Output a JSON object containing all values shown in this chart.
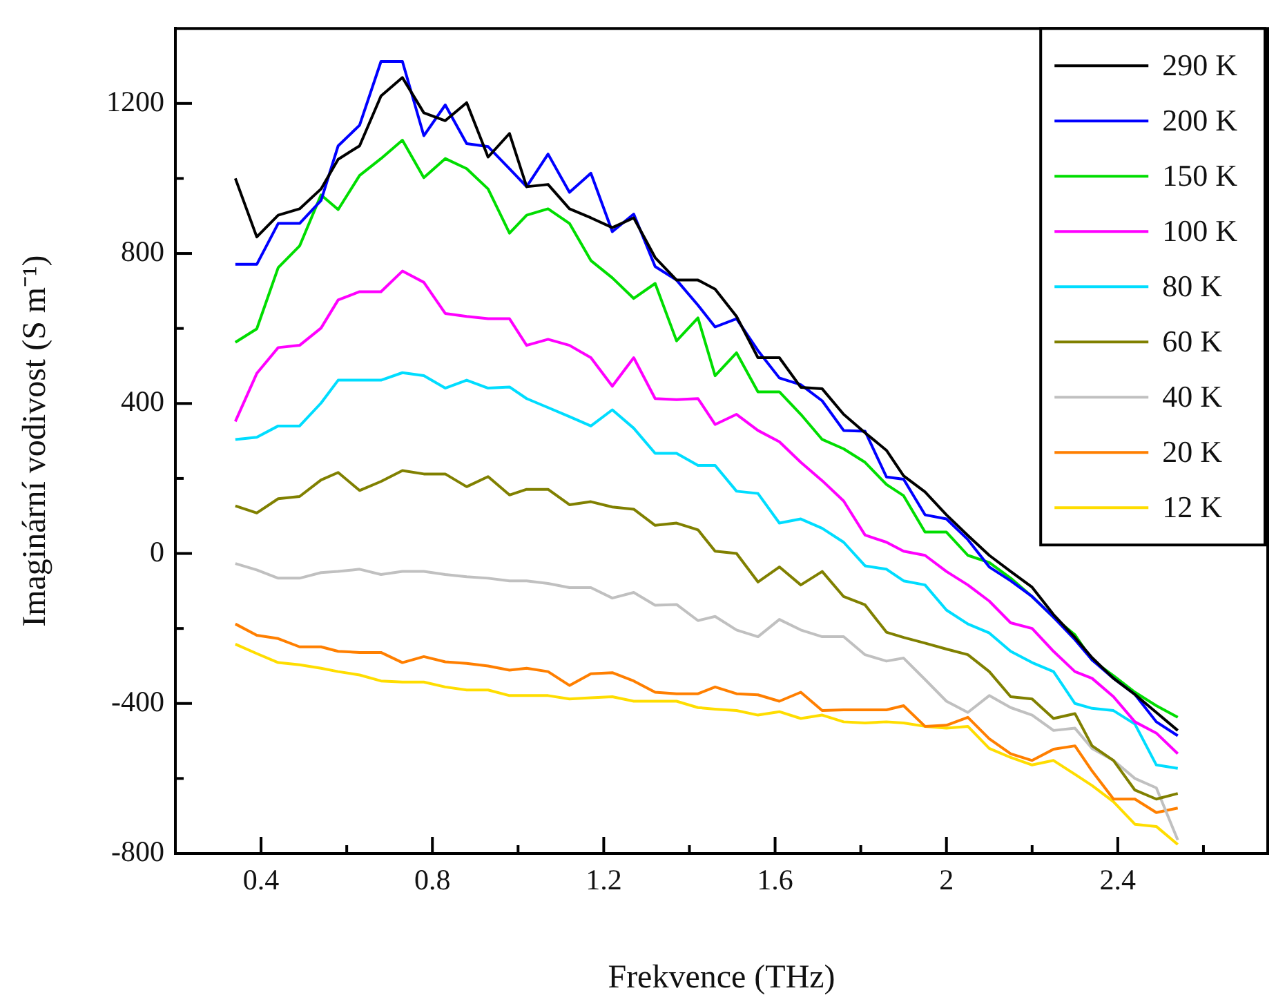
{
  "chart_data": {
    "type": "line",
    "xlabel": "Frekvence (THz)",
    "ylabel": "Imaginární vodivost (S m⁻¹)",
    "x": [
      0.34,
      0.39,
      0.44,
      0.49,
      0.54,
      0.58,
      0.63,
      0.68,
      0.73,
      0.78,
      0.83,
      0.88,
      0.93,
      0.98,
      1.02,
      1.07,
      1.12,
      1.17,
      1.22,
      1.27,
      1.32,
      1.37,
      1.42,
      1.46,
      1.51,
      1.56,
      1.61,
      1.66,
      1.71,
      1.76,
      1.81,
      1.86,
      1.9,
      1.95,
      2.0,
      2.05,
      2.1,
      2.15,
      2.2,
      2.25,
      2.3,
      2.34,
      2.39,
      2.44,
      2.49,
      2.54
    ],
    "xlim": [
      0.2,
      2.75
    ],
    "xticks": [
      0.4,
      {
        "value": 0.6,
        "label": null
      },
      0.8,
      {
        "value": 1.0,
        "label": null
      },
      1.2,
      {
        "value": 1.4,
        "label": null
      },
      1.6,
      {
        "value": 1.8,
        "label": null
      },
      2,
      {
        "value": 2.2,
        "label": null
      },
      2.4,
      {
        "value": 2.6,
        "label": null
      }
    ],
    "ylim": [
      -800,
      1400
    ],
    "yticks": [
      -800,
      {
        "value": -600,
        "label": null
      },
      -400,
      {
        "value": -200,
        "label": null
      },
      0,
      {
        "value": 200,
        "label": null
      },
      400,
      {
        "value": 600,
        "label": null
      },
      800,
      {
        "value": 1000,
        "label": null
      },
      1200
    ],
    "grid": false,
    "legend": "top right",
    "marker": "none",
    "line_style": "solid",
    "series": [
      {
        "name": "290 K",
        "color": "#000000",
        "values": [
          1000,
          844,
          902,
          919,
          972,
          1051,
          1087,
          1220,
          1269,
          1175,
          1154,
          1202,
          1057,
          1120,
          978,
          984,
          919,
          895,
          869,
          895,
          789,
          729,
          729,
          705,
          632,
          522,
          522,
          443,
          439,
          371,
          322,
          275,
          207,
          164,
          103,
          48,
          -5,
          -48,
          -90,
          -163,
          -224,
          -278,
          -333,
          -376,
          -424,
          -472
        ]
      },
      {
        "name": "200 K",
        "color": "#0000ff",
        "values": [
          771,
          771,
          880,
          880,
          941,
          1087,
          1142,
          1312,
          1312,
          1114,
          1196,
          1093,
          1085,
          1026,
          978,
          1065,
          963,
          1014,
          858,
          905,
          765,
          729,
          662,
          604,
          626,
          541,
          468,
          450,
          407,
          328,
          326,
          204,
          198,
          103,
          92,
          37,
          -36,
          -73,
          -115,
          -170,
          -230,
          -284,
          -333,
          -376,
          -449,
          -486
        ]
      },
      {
        "name": "150 K",
        "color": "#00dd00",
        "values": [
          563,
          599,
          762,
          820,
          956,
          917,
          1008,
          1053,
          1102,
          1002,
          1053,
          1026,
          972,
          854,
          902,
          919,
          880,
          781,
          735,
          680,
          720,
          567,
          628,
          474,
          535,
          431,
          431,
          371,
          304,
          279,
          243,
          184,
          154,
          57,
          57,
          -5,
          -24,
          -66,
          -115,
          -170,
          -217,
          -284,
          -326,
          -370,
          -406,
          -437
        ]
      },
      {
        "name": "100 K",
        "color": "#ff00ff",
        "values": [
          352,
          480,
          549,
          555,
          601,
          676,
          698,
          698,
          753,
          723,
          640,
          632,
          626,
          626,
          555,
          571,
          555,
          522,
          446,
          522,
          413,
          410,
          413,
          344,
          371,
          328,
          298,
          243,
          194,
          140,
          49,
          30,
          6,
          -5,
          -48,
          -84,
          -127,
          -185,
          -200,
          -261,
          -315,
          -333,
          -382,
          -449,
          -479,
          -534
        ]
      },
      {
        "name": "80 K",
        "color": "#00ddff",
        "values": [
          304,
          310,
          340,
          340,
          401,
          462,
          462,
          462,
          482,
          474,
          441,
          462,
          441,
          444,
          413,
          389,
          365,
          340,
          383,
          334,
          267,
          267,
          235,
          235,
          166,
          160,
          81,
          92,
          67,
          30,
          -33,
          -42,
          -73,
          -84,
          -151,
          -188,
          -212,
          -261,
          -291,
          -315,
          -400,
          -413,
          -419,
          -455,
          -564,
          -573
        ]
      },
      {
        "name": "60 K",
        "color": "#808000",
        "values": [
          127,
          108,
          146,
          152,
          196,
          216,
          168,
          192,
          221,
          212,
          212,
          178,
          205,
          156,
          171,
          171,
          130,
          138,
          124,
          118,
          75,
          81,
          63,
          6,
          0,
          -76,
          -36,
          -84,
          -48,
          -115,
          -137,
          -210,
          -224,
          -239,
          -255,
          -270,
          -315,
          -382,
          -388,
          -440,
          -427,
          -513,
          -552,
          -631,
          -655,
          -640
        ]
      },
      {
        "name": "40 K",
        "color": "#c0c0c0",
        "values": [
          -27,
          -44,
          -66,
          -66,
          -51,
          -48,
          -42,
          -56,
          -48,
          -48,
          -56,
          -62,
          -66,
          -73,
          -73,
          -80,
          -91,
          -91,
          -119,
          -104,
          -138,
          -136,
          -179,
          -168,
          -204,
          -222,
          -176,
          -204,
          -222,
          -222,
          -270,
          -287,
          -279,
          -336,
          -394,
          -424,
          -379,
          -411,
          -431,
          -472,
          -466,
          -520,
          -552,
          -600,
          -625,
          -764
        ]
      },
      {
        "name": "20 K",
        "color": "#ff7f00",
        "values": [
          -188,
          -218,
          -227,
          -249,
          -249,
          -261,
          -264,
          -264,
          -291,
          -275,
          -289,
          -293,
          -300,
          -311,
          -306,
          -315,
          -352,
          -321,
          -318,
          -340,
          -370,
          -374,
          -374,
          -356,
          -374,
          -377,
          -394,
          -370,
          -419,
          -417,
          -417,
          -417,
          -406,
          -461,
          -458,
          -437,
          -494,
          -534,
          -552,
          -522,
          -513,
          -580,
          -655,
          -655,
          -691,
          -679
        ]
      },
      {
        "name": "12 K",
        "color": "#ffdd00",
        "values": [
          -242,
          -267,
          -291,
          -297,
          -306,
          -315,
          -324,
          -340,
          -343,
          -343,
          -356,
          -364,
          -364,
          -379,
          -379,
          -379,
          -388,
          -385,
          -382,
          -394,
          -394,
          -394,
          -411,
          -415,
          -419,
          -431,
          -422,
          -440,
          -431,
          -449,
          -452,
          -449,
          -452,
          -461,
          -466,
          -461,
          -520,
          -544,
          -564,
          -552,
          -589,
          -619,
          -662,
          -722,
          -728,
          -776
        ]
      }
    ]
  }
}
